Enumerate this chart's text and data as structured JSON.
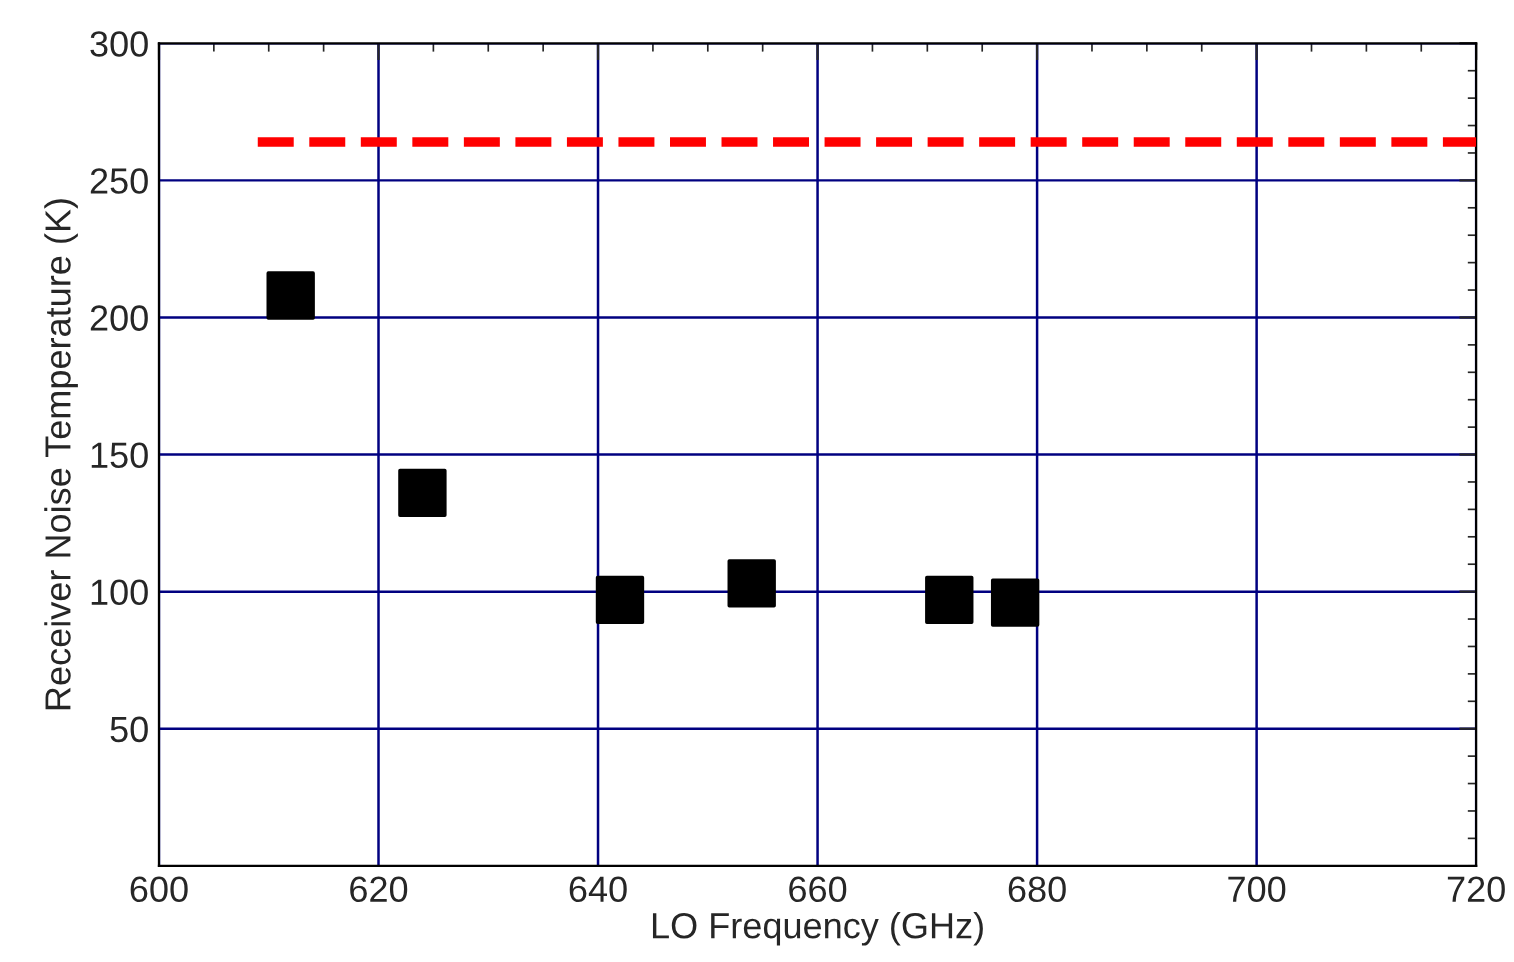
{
  "chart_data": {
    "type": "scatter",
    "xlabel": "LO Frequency (GHz)",
    "ylabel": "Receiver Noise Temperature (K)",
    "xlim": [
      600,
      720
    ],
    "xticks": [
      600,
      620,
      640,
      660,
      680,
      700,
      720
    ],
    "ylim": [
      0,
      300
    ],
    "yticks": [
      50,
      100,
      150,
      200,
      250,
      300
    ],
    "grid": true,
    "marker": "square",
    "series": [
      {
        "color": "#000000",
        "x": [
          612,
          624,
          642,
          654,
          672,
          678
        ],
        "values": [
          208,
          136,
          97,
          103,
          97,
          96
        ]
      },
      {
        "type": "line",
        "color": "#ff0000",
        "line_style": "dashed",
        "marker": "none",
        "x": [
          609,
          720
        ],
        "values": [
          264,
          264
        ]
      }
    ]
  }
}
